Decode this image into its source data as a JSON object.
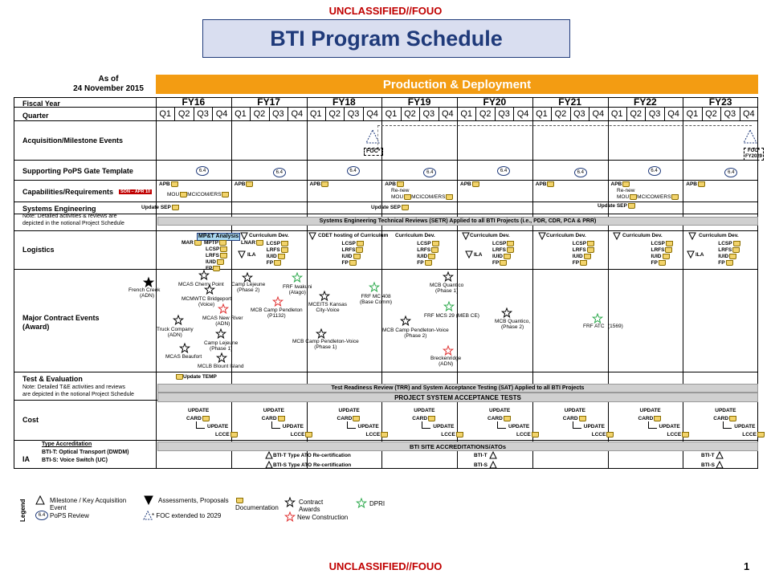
{
  "classification_top": "UNCLASSIFIED//FOUO",
  "classification_bottom": "UNCLASSIFIED//FOUO",
  "title": "BTI Program Schedule",
  "as_of_line1": "As of",
  "as_of_line2": "24 November  2015",
  "banner": "Production & Deployment",
  "page_number": "1",
  "header": {
    "fiscal_year": "Fiscal Year",
    "quarter": "Quarter",
    "years": [
      "FY16",
      "FY17",
      "FY18",
      "FY19",
      "FY20",
      "FY21",
      "FY22",
      "FY23"
    ],
    "quarters": [
      "Q1",
      "Q2",
      "Q3",
      "Q4"
    ]
  },
  "rows": {
    "acq": "Acquisition/Milestone Events",
    "pops": "Supporting PoPS Gate Template",
    "cap": "Capabilities/Requirements",
    "cap_tag": "SON – APR 10",
    "se": "Systems Engineering",
    "se_note1": "Note:  Detailed activities & reviews  are",
    "se_note2": "depicted in the notional Project Schedule",
    "log": "Logistics",
    "mce": "Major Contract Events",
    "mce2": "(Award)",
    "te": "Test & Evaluation",
    "te_note1": "Note:  Detailed T&E activities and reviews",
    "te_note2": "are depicted in the notional Project Schedule",
    "cost": "Cost",
    "ia": "IA",
    "ia_type": "Type Accreditation",
    "ia_btit": "BTI-T:  Optical Transport (DWDM)",
    "ia_btis": "BTI-S:  Voice Switch (UC)"
  },
  "acq": {
    "foc": "FOC*",
    "foc2": "FOC*",
    "foc2b": "FY2029"
  },
  "pops_label": "6.4",
  "cap": {
    "apb": "APB",
    "mou": "MOU",
    "mcicom": "MCICOM/ERS",
    "renew1": "Re-new",
    "renew2": "Re-new",
    "mou2": "MOU",
    "mou3": "MOU",
    "mcicom2": "MCICOM/ERS",
    "mcicom3": "MCICOM/ERS"
  },
  "se": {
    "update_sep": "Update SEP",
    "setr": "Systems Engineering Technical Reviews (SETR) Applied to all BTI Projects (i.e., PDR, CDR, PCA & PRR)"
  },
  "log": {
    "mar": "MAR",
    "mpt": "MP&T Analysis",
    "mptp": "MPTP",
    "lcsp": "LCSP",
    "lrfs": "LRFS",
    "iuid": "IUID",
    "fp": "FP",
    "curr": "Curriculum Dev.",
    "lnar": "LNAR",
    "ila": "ILA",
    "cdet": "CDET hosting of Curriculum"
  },
  "mce": {
    "french": "French Creek",
    "adn": "(ADN)",
    "cherry": "MCAS Cherry Point",
    "bridgeport": "MCMWTC Bridgeport",
    "voice": "(Voice)",
    "lejeune2": "Camp Lejeune",
    "phase2": "(Phase 2)",
    "mcasnew": "MCAS New  River",
    "adn2": "(ADN)",
    "truck": "Truck  Company",
    "adn3": "(ADN)",
    "beaufort": "MCAS Beaufort",
    "lejeune1": "Camp Lejeune",
    "phase1": "(Phase 1)",
    "blount": "MCLB Blount Island",
    "pendleton": "MCB Camp Pendleton",
    "p1132": "(P1132)",
    "iwakuni": "FRF Iwakuni",
    "atago": "(Atago)",
    "kansas": "MCEITS Kansas",
    "cityvoice": "City-Voice",
    "pendvoice": "MCB Camp  Pendleton-Voice",
    "phase1b": "(Phase 1)",
    "mc408": "FRF MC 408",
    "basecomm": "(Base Comm)",
    "quantico": "MCB Quantico",
    "phase1c": "(Phase 1)",
    "mc25": "FRF MCS 29 (MEB CE)",
    "pendvoice2": "MCB Camp Pendleton-Voice",
    "phase2b": "(Phase 2)",
    "brecken": "Breckenridge",
    "adn4": "(ADN)",
    "quantico2": "MCB Quantico,",
    "phase2c": "(Phase 2)",
    "atc": "FRF ATC",
    "n1569": "(1569)"
  },
  "te": {
    "update_temp": "Update TEMP",
    "trr": "Test Readiness Review (TRR) and System Acceptance Testing (SAT) Applied to all BTI Projects",
    "pst": "PROJECT SYSTEM ACCEPTANCE TESTS"
  },
  "cost": {
    "update": "UPDATE",
    "card": "CARD",
    "lcce": "LCCE"
  },
  "ia": {
    "bar": "BTI SITE ACCREDITATIONS/ATOs",
    "btit": "BTI-T Type ATO Re-certification",
    "btis": "BTI-S Type ATO Re-certification",
    "t": "BTI-T",
    "s": "BTI-S"
  },
  "legend": {
    "title": "Legend",
    "milestone": "Milestone / Key Acquisition Event",
    "pops": "PoPS Review",
    "pops_val": "6.4",
    "assess": "Assessments, Proposals",
    "foc_note": "* FOC extended to 2029",
    "docs": "Documentation",
    "contract": "Contract Awards",
    "newcon": "New Construction",
    "dpri": "DPRI"
  },
  "colors": {
    "banner": "#f39c12",
    "title": "#1f3a7a",
    "classification": "#c00000",
    "bar": "#d0d0d0",
    "star_red": "#e03030",
    "star_green": "#2aa84a"
  }
}
